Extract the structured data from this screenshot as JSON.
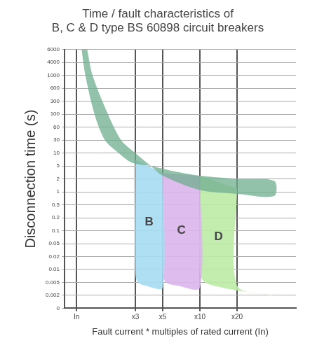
{
  "chart_data": {
    "type": "area",
    "title": [
      "Time / fault characteristics of",
      "B, C & D type BS 60898 circuit breakers"
    ],
    "x_label": "Fault current * multiples of rated current (In)",
    "y_label": "Disconnection time (s)",
    "log": true,
    "grid": true,
    "xlim": [
      0.8,
      60
    ],
    "xticks": [
      {
        "value": 1,
        "label": "In"
      },
      {
        "value": 3,
        "label": "x3"
      },
      {
        "value": 5,
        "label": "x5"
      },
      {
        "value": 10,
        "label": "x10"
      },
      {
        "value": 20,
        "label": "x20"
      }
    ],
    "ylim": [
      0,
      6000
    ],
    "yticks": [
      0,
      0.002,
      0.005,
      0.01,
      0.02,
      0.05,
      0.1,
      0.2,
      0.5,
      1,
      2,
      5,
      10,
      30,
      60,
      100,
      300,
      600,
      1000,
      4000,
      6000
    ],
    "series": [
      {
        "color": "#6fae8f",
        "x": [
          1.1,
          1.18,
          1.4,
          1.7,
          2.2,
          2.8,
          4,
          6,
          10,
          20,
          40,
          40,
          20,
          10,
          5,
          4,
          3,
          2.3,
          1.8,
          1.35,
          1.22
        ],
        "values": [
          6000,
          1000,
          100,
          30,
          10,
          6,
          5,
          3.5,
          2.5,
          2,
          1.8,
          0.8,
          0.9,
          1.1,
          2.5,
          5,
          10,
          30,
          100,
          1000,
          6000
        ]
      },
      {
        "name": "B",
        "color": "#a6dcf2",
        "x": [
          3,
          3,
          3.15,
          3.6,
          5,
          5
        ],
        "values": [
          7,
          0.008,
          0.005,
          0.004,
          0.0035,
          3
        ]
      },
      {
        "name": "C",
        "color": "#dab6ec",
        "x": [
          5,
          5,
          5.3,
          6.5,
          10,
          10
        ],
        "values": [
          3,
          0.008,
          0.005,
          0.004,
          0.0035,
          2.5
        ]
      },
      {
        "name": "D",
        "color": "#bdeaa6",
        "x": [
          10,
          10,
          11,
          15,
          25,
          40,
          20,
          20
        ],
        "values": [
          2.5,
          0.008,
          0.005,
          0.0035,
          0.0025,
          0.002,
          0.004,
          1.2
        ]
      }
    ]
  }
}
